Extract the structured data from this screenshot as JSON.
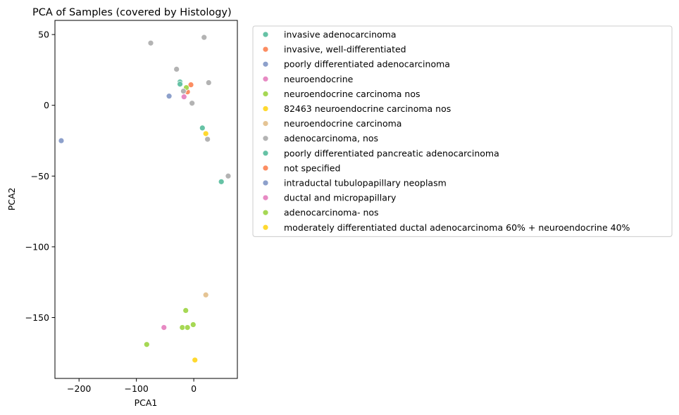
{
  "chart_data": {
    "type": "scatter",
    "title": "PCA of Samples (covered by Histology)",
    "xlabel": "PCA1",
    "ylabel": "PCA2",
    "xlim": [
      -242,
      76
    ],
    "ylim": [
      -193,
      60
    ],
    "xticks": [
      -200,
      -100,
      0
    ],
    "xtick_labels": [
      "−200",
      "−100",
      "0"
    ],
    "yticks": [
      50,
      0,
      -50,
      -100,
      -150
    ],
    "ytick_labels": [
      "50",
      "0",
      "−50",
      "−100",
      "−150"
    ],
    "grid": false,
    "legend_position": "outside-right",
    "series": [
      {
        "name": "invasive adenocarcinoma",
        "color": "#66c2a5",
        "points": [
          [
            -24,
            16.5
          ],
          [
            -24,
            15
          ]
        ]
      },
      {
        "name": "invasive, well-differentiated",
        "color": "#fc8d62",
        "points": [
          [
            -5,
            14.5
          ],
          [
            -11,
            9.5
          ]
        ]
      },
      {
        "name": "poorly differentiated adenocarcinoma",
        "color": "#8da0cb",
        "points": [
          [
            -43,
            6.5
          ]
        ]
      },
      {
        "name": "neuroendocrine",
        "color": "#e78ac3",
        "points": [
          [
            -17,
            6
          ]
        ]
      },
      {
        "name": "neuroendocrine carcinoma nos",
        "color": "#a6d854",
        "points": [
          [
            -13,
            12.5
          ],
          [
            -14,
            -145
          ]
        ]
      },
      {
        "name": "82463 neuroendocrine carcinoma nos",
        "color": "#ffd92f",
        "points": [
          [
            21,
            -20
          ]
        ]
      },
      {
        "name": "neuroendocrine carcinoma",
        "color": "#e5c494",
        "points": [
          [
            21,
            -134
          ]
        ]
      },
      {
        "name": "adenocarcinoma, nos",
        "color": "#b3b3b3",
        "points": [
          [
            -75,
            44
          ],
          [
            18,
            48
          ],
          [
            -30,
            25.5
          ],
          [
            26,
            16
          ],
          [
            -18,
            10
          ],
          [
            -3,
            1.5
          ],
          [
            24,
            -24
          ],
          [
            60,
            -50
          ]
        ]
      },
      {
        "name": "poorly differentiated pancreatic adenocarcinoma",
        "color": "#66c2a5",
        "points": [
          [
            15,
            -16
          ],
          [
            48,
            -54
          ]
        ]
      },
      {
        "name": "not specified",
        "color": "#fc8d62",
        "points": []
      },
      {
        "name": "intraductal tubulopapillary neoplasm",
        "color": "#8da0cb",
        "points": [
          [
            -231,
            -25
          ]
        ]
      },
      {
        "name": "ductal and micropapillary",
        "color": "#e78ac3",
        "points": [
          [
            -52,
            -157
          ]
        ]
      },
      {
        "name": "adenocarcinoma- nos",
        "color": "#a6d854",
        "points": [
          [
            -20,
            -157
          ],
          [
            -11,
            -157
          ],
          [
            -1,
            -155
          ],
          [
            -82,
            -169
          ]
        ]
      },
      {
        "name": "moderately differentiated ductal adenocarcinoma 60% + neuroendocrine 40%",
        "color": "#ffd92f",
        "points": [
          [
            2,
            -180
          ]
        ]
      }
    ]
  }
}
